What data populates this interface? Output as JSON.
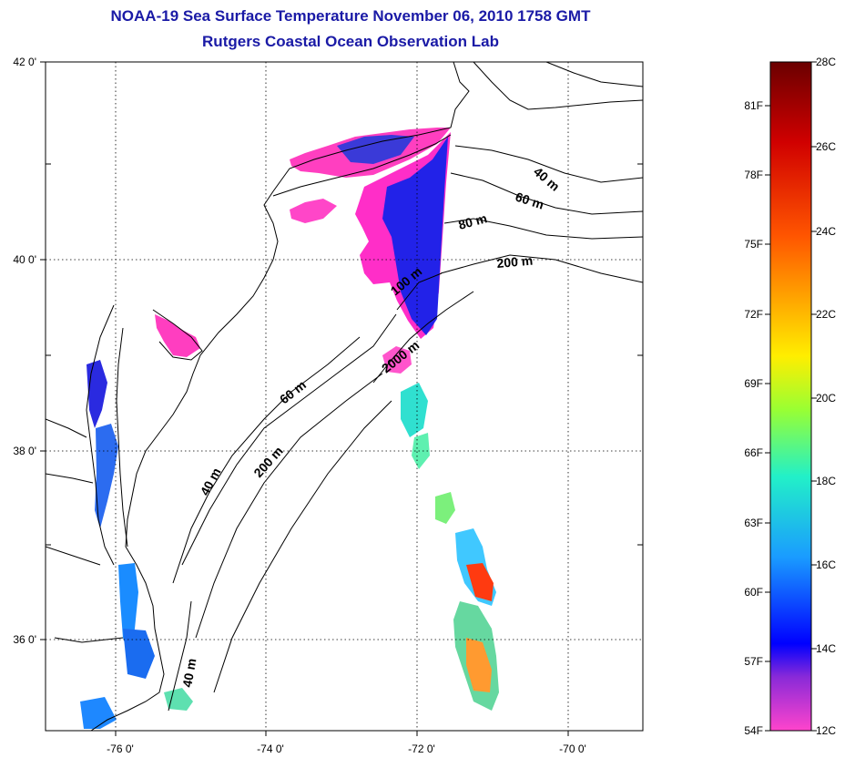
{
  "title": "NOAA-19 Sea Surface Temperature November 06, 2010 1758 GMT",
  "subtitle": "Rutgers Coastal Ocean Observation Lab",
  "lat_labels": [
    "42 0'",
    "40 0'",
    "38 0'",
    "36 0'"
  ],
  "lon_labels": [
    "-76 0'",
    "-74 0'",
    "-72 0'",
    "-70 0'"
  ],
  "depth_contours": [
    {
      "id": "40m-ne",
      "text": "40 m"
    },
    {
      "id": "60m-ne",
      "text": "60 m"
    },
    {
      "id": "80m-ne",
      "text": "80 m"
    },
    {
      "id": "200m-ne",
      "text": "200 m"
    },
    {
      "id": "100m",
      "text": "100 m"
    },
    {
      "id": "2000m",
      "text": "2000 m"
    },
    {
      "id": "60m-sw",
      "text": "60 m"
    },
    {
      "id": "40m-sw",
      "text": "40 m"
    },
    {
      "id": "200m-sw",
      "text": "200 m"
    },
    {
      "id": "40m-s",
      "text": "40 m"
    }
  ],
  "colorbar": {
    "fahrenheit": [
      "81F",
      "78F",
      "75F",
      "72F",
      "69F",
      "66F",
      "63F",
      "60F",
      "57F",
      "54F"
    ],
    "celsius": [
      "28C",
      "26C",
      "24C",
      "22C",
      "20C",
      "18C",
      "16C",
      "14C",
      "12C"
    ]
  },
  "colors": {
    "title": "#1a1aa6",
    "scale_stops": [
      "#7a0000",
      "#d40000",
      "#ff5a00",
      "#ffa800",
      "#ffee00",
      "#9cff3a",
      "#22f0c8",
      "#1aa0ff",
      "#0000ff",
      "#8a2ad8",
      "#ff2ac8",
      "#ff48c8"
    ]
  }
}
